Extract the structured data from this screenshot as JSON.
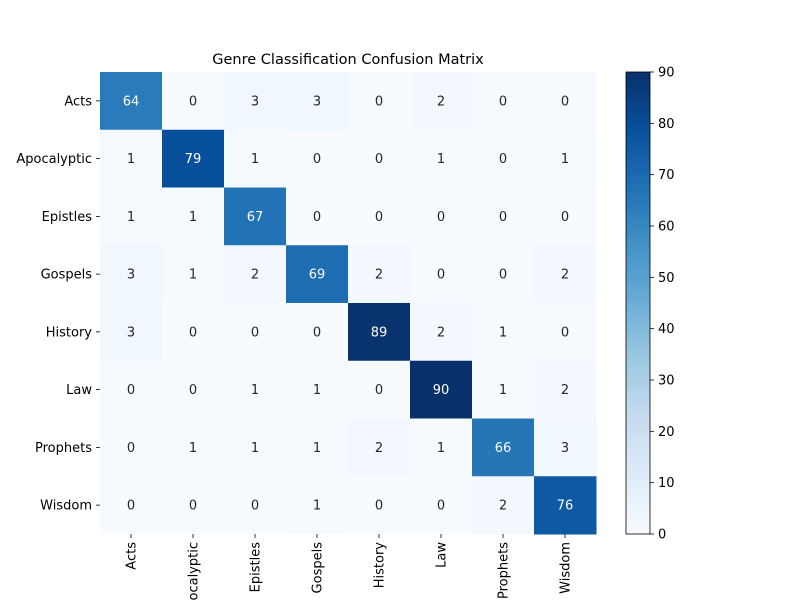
{
  "chart_data": {
    "type": "heatmap",
    "title": "Genre Classification Confusion Matrix",
    "xlabel": "",
    "ylabel": "",
    "rows": [
      "Acts",
      "Apocalyptic",
      "Epistles",
      "Gospels",
      "History",
      "Law",
      "Prophets",
      "Wisdom"
    ],
    "columns": [
      "Acts",
      "Apocalyptic",
      "Epistles",
      "Gospels",
      "History",
      "Law",
      "Prophets",
      "Wisdom"
    ],
    "values": [
      [
        64,
        0,
        3,
        3,
        0,
        2,
        0,
        0
      ],
      [
        1,
        79,
        1,
        0,
        0,
        1,
        0,
        1
      ],
      [
        1,
        1,
        67,
        0,
        0,
        0,
        0,
        0
      ],
      [
        3,
        1,
        2,
        69,
        2,
        0,
        0,
        2
      ],
      [
        3,
        0,
        0,
        0,
        89,
        2,
        1,
        0
      ],
      [
        0,
        0,
        1,
        1,
        0,
        90,
        1,
        2
      ],
      [
        0,
        1,
        1,
        1,
        2,
        1,
        66,
        3
      ],
      [
        0,
        0,
        0,
        1,
        0,
        0,
        2,
        76
      ]
    ],
    "colorbar": {
      "min": 0,
      "max": 90,
      "ticks": [
        0,
        10,
        20,
        30,
        40,
        50,
        60,
        70,
        80,
        90
      ],
      "colormap": "Blues"
    },
    "annotations": true,
    "grid": false
  }
}
